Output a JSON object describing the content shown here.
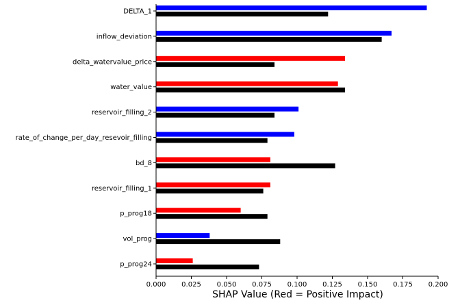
{
  "chart_data": {
    "type": "bar",
    "orientation": "horizontal",
    "xlabel": "SHAP Value (Red = Positive Impact)",
    "xlim": [
      0.0,
      0.2
    ],
    "xticks": [
      "0.000",
      "0.025",
      "0.050",
      "0.075",
      "0.100",
      "0.125",
      "0.150",
      "0.175",
      "0.200"
    ],
    "grid": false,
    "categories": [
      "DELTA_1",
      "inflow_deviation",
      "delta_watervalue_price",
      "water_value",
      "reservoir_filling_2",
      "rate_of_change_per_day_resevoir_filling",
      "bd_8",
      "reservoir_filling_1",
      "p_prog18",
      "vol_prog",
      "p_prog24"
    ],
    "series": [
      {
        "values": [
          0.192,
          0.167,
          0.134,
          0.129,
          0.101,
          0.098,
          0.081,
          0.081,
          0.06,
          0.038,
          0.026
        ],
        "colors": [
          "#0000ff",
          "#0000ff",
          "#ff0000",
          "#ff0000",
          "#0000ff",
          "#0000ff",
          "#ff0000",
          "#ff0000",
          "#ff0000",
          "#0000ff",
          "#ff0000"
        ]
      },
      {
        "values": [
          0.122,
          0.16,
          0.084,
          0.134,
          0.084,
          0.079,
          0.127,
          0.076,
          0.079,
          0.088,
          0.073
        ],
        "color": "#000000"
      }
    ]
  }
}
